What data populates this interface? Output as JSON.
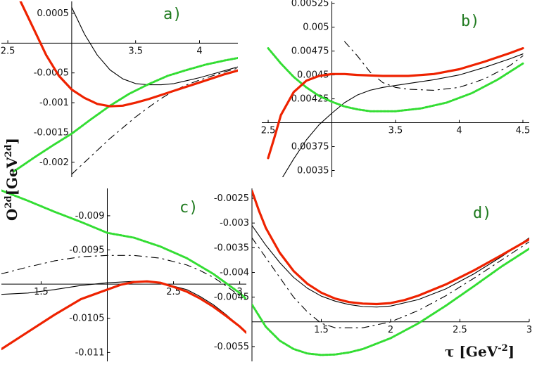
{
  "figure": {
    "ylabel": {
      "base": "O",
      "sup1": "2d",
      "mid": "[GeV",
      "sup2": "2d",
      "end": "]"
    },
    "xlabel": {
      "base": "τ [GeV",
      "sup": "-2",
      "end": "]"
    }
  },
  "chart_data": [
    {
      "panel": "a)",
      "type": "line",
      "xlim": [
        2.45,
        4.3
      ],
      "ylim": [
        -0.00225,
        0.0007
      ],
      "xticks": [
        "2.5",
        "3.5",
        "4"
      ],
      "xtick_values": [
        2.5,
        3.5,
        4
      ],
      "yticks": [
        "0.0005",
        "-0.0005",
        "-0.001",
        "-0.0015",
        "-0.002"
      ],
      "ytick_values": [
        0.0005,
        -0.0005,
        -0.001,
        -0.0015,
        -0.002
      ],
      "axis_cross": [
        3.0,
        0.0
      ],
      "series": [
        {
          "style": "black-solid",
          "color": "#000000",
          "x": [
            3.0,
            3.1,
            3.2,
            3.3,
            3.4,
            3.5,
            3.6,
            3.7,
            3.8,
            3.9,
            4.0,
            4.1,
            4.2,
            4.3
          ],
          "y": [
            0.0006,
            0.00015,
            -0.0002,
            -0.00045,
            -0.0006,
            -0.00068,
            -0.0007,
            -0.0007,
            -0.00068,
            -0.00063,
            -0.00058,
            -0.00052,
            -0.00046,
            -0.0004
          ]
        },
        {
          "style": "black-dashed",
          "color": "#000000",
          "x": [
            3.0,
            3.1,
            3.2,
            3.3,
            3.4,
            3.5,
            3.6,
            3.7,
            3.8,
            3.9,
            4.0,
            4.1,
            4.2,
            4.3
          ],
          "y": [
            -0.0022,
            -0.002,
            -0.0018,
            -0.0016,
            -0.00142,
            -0.00124,
            -0.00108,
            -0.00093,
            -0.0008,
            -0.0007,
            -0.00062,
            -0.00055,
            -0.00048,
            -0.00042
          ]
        },
        {
          "style": "green-dotted",
          "color": "#33dd33",
          "x": [
            2.55,
            2.7,
            2.85,
            3.0,
            3.15,
            3.3,
            3.45,
            3.6,
            3.75,
            3.9,
            4.05,
            4.2,
            4.3
          ],
          "y": [
            -0.00215,
            -0.00193,
            -0.00172,
            -0.00152,
            -0.00128,
            -0.00105,
            -0.00085,
            -0.00069,
            -0.00055,
            -0.00045,
            -0.00036,
            -0.00029,
            -0.00025
          ]
        },
        {
          "style": "red-thick",
          "color": "#ee2200",
          "x": [
            2.6,
            2.7,
            2.8,
            2.9,
            3.0,
            3.1,
            3.2,
            3.3,
            3.4,
            3.5,
            3.6,
            3.7,
            3.8,
            3.9,
            4.0,
            4.1,
            4.2,
            4.3
          ],
          "y": [
            0.0007,
            0.00025,
            -0.0002,
            -0.00055,
            -0.00078,
            -0.00092,
            -0.00102,
            -0.00106,
            -0.00105,
            -0.001,
            -0.00094,
            -0.00087,
            -0.0008,
            -0.00073,
            -0.00066,
            -0.00059,
            -0.00052,
            -0.00046
          ]
        }
      ]
    },
    {
      "panel": "b)",
      "type": "line",
      "xlim": [
        2.45,
        4.55
      ],
      "ylim": [
        0.00343,
        0.00527
      ],
      "xticks": [
        "2.5",
        "3.5",
        "4",
        "4.5"
      ],
      "xtick_values": [
        2.5,
        3.5,
        4,
        4.5
      ],
      "yticks": [
        "0.00525",
        "0.005",
        "0.00475",
        "0.0045",
        "0.00425",
        "0.00375",
        "0.0035"
      ],
      "ytick_values": [
        0.00525,
        0.005,
        0.00475,
        0.0045,
        0.00425,
        0.00375,
        0.0035
      ],
      "axis_cross": [
        3.0,
        0.004
      ],
      "series": [
        {
          "style": "black-solid",
          "color": "#000000",
          "x": [
            2.6,
            2.7,
            2.8,
            2.9,
            3.0,
            3.1,
            3.2,
            3.3,
            3.4,
            3.6,
            3.8,
            4.0,
            4.2,
            4.4,
            4.5
          ],
          "y": [
            0.0034,
            0.00362,
            0.00382,
            0.00398,
            0.0041,
            0.00421,
            0.00429,
            0.00434,
            0.00437,
            0.00441,
            0.00445,
            0.0045,
            0.00458,
            0.00467,
            0.00472
          ]
        },
        {
          "style": "black-dashed",
          "color": "#000000",
          "x": [
            3.1,
            3.2,
            3.3,
            3.4,
            3.5,
            3.6,
            3.8,
            4.0,
            4.2,
            4.4,
            4.5
          ],
          "y": [
            0.00485,
            0.0047,
            0.00453,
            0.00442,
            0.00437,
            0.00435,
            0.00434,
            0.00437,
            0.00446,
            0.0046,
            0.0047
          ]
        },
        {
          "style": "green-dotted",
          "color": "#33dd33",
          "x": [
            2.5,
            2.6,
            2.7,
            2.8,
            2.9,
            3.0,
            3.1,
            3.2,
            3.3,
            3.5,
            3.7,
            3.9,
            4.1,
            4.3,
            4.5
          ],
          "y": [
            0.00478,
            0.00462,
            0.00448,
            0.00437,
            0.00428,
            0.00422,
            0.00417,
            0.00414,
            0.00412,
            0.00412,
            0.00415,
            0.00421,
            0.00431,
            0.00445,
            0.00462
          ]
        },
        {
          "style": "red-thick",
          "color": "#ee2200",
          "x": [
            2.5,
            2.55,
            2.6,
            2.7,
            2.8,
            2.9,
            3.0,
            3.1,
            3.2,
            3.4,
            3.6,
            3.8,
            4.0,
            4.2,
            4.4,
            4.5
          ],
          "y": [
            0.00363,
            0.00385,
            0.00408,
            0.00432,
            0.00444,
            0.00449,
            0.00451,
            0.00451,
            0.0045,
            0.00449,
            0.00449,
            0.00451,
            0.00456,
            0.00464,
            0.00473,
            0.00478
          ]
        }
      ]
    },
    {
      "panel": "c)",
      "type": "line",
      "xlim": [
        1.2,
        3.05
      ],
      "ylim": [
        -0.01113,
        -0.0086
      ],
      "xticks": [
        "1.5",
        "2.5",
        "3"
      ],
      "xtick_values": [
        1.5,
        2.5,
        3
      ],
      "yticks": [
        "-0.009",
        "-0.0095",
        "-0.0105",
        "-0.011"
      ],
      "ytick_values": [
        -0.009,
        -0.0095,
        -0.0105,
        -0.011
      ],
      "axis_cross": [
        2.0,
        -0.01
      ],
      "series": [
        {
          "style": "black-solid",
          "color": "#000000",
          "x": [
            1.2,
            1.4,
            1.6,
            1.8,
            2.0,
            2.2,
            2.4,
            2.6,
            2.7,
            2.8,
            2.9,
            3.05
          ],
          "y": [
            -0.01015,
            -0.01013,
            -0.01008,
            -0.01002,
            -0.00998,
            -0.00996,
            -0.00998,
            -0.01008,
            -0.01018,
            -0.0103,
            -0.01045,
            -0.0107
          ]
        },
        {
          "style": "black-dashed",
          "color": "#000000",
          "x": [
            1.2,
            1.4,
            1.6,
            1.8,
            2.0,
            2.2,
            2.4,
            2.6,
            2.7,
            2.8,
            2.9,
            3.0
          ],
          "y": [
            -0.00985,
            -0.00975,
            -0.00966,
            -0.0096,
            -0.00958,
            -0.00958,
            -0.00962,
            -0.00972,
            -0.0098,
            -0.0099,
            -0.01003,
            -0.01017
          ]
        },
        {
          "style": "green-dotted",
          "color": "#33dd33",
          "x": [
            1.2,
            1.4,
            1.6,
            1.8,
            2.0,
            2.2,
            2.4,
            2.6,
            2.8,
            3.0,
            3.05
          ],
          "y": [
            -0.00863,
            -0.00878,
            -0.00894,
            -0.00909,
            -0.00925,
            -0.00932,
            -0.00945,
            -0.00962,
            -0.00985,
            -0.01013,
            -0.01022
          ]
        },
        {
          "style": "red-thick",
          "color": "#ee2200",
          "x": [
            1.2,
            1.4,
            1.6,
            1.8,
            2.0,
            2.1,
            2.2,
            2.3,
            2.4,
            2.5,
            2.6,
            2.7,
            2.8,
            2.9,
            3.0,
            3.05
          ],
          "y": [
            -0.01095,
            -0.0107,
            -0.01045,
            -0.01022,
            -0.01008,
            -0.01001,
            -0.00997,
            -0.00996,
            -0.00998,
            -0.01004,
            -0.01011,
            -0.01021,
            -0.01033,
            -0.01047,
            -0.01062,
            -0.01071
          ]
        }
      ]
    },
    {
      "panel": "d)",
      "type": "line",
      "xlim": [
        1.0,
        3.0
      ],
      "ylim": [
        -0.0058,
        -0.0023
      ],
      "xticks": [
        "1.5",
        "2",
        "2.5",
        "3"
      ],
      "xtick_values": [
        1.5,
        2,
        2.5,
        3
      ],
      "yticks": [
        "-0.0025",
        "-0.003",
        "-0.0035",
        "-0.004",
        "-0.0045",
        "-0.0055"
      ],
      "ytick_values": [
        -0.0025,
        -0.003,
        -0.0035,
        -0.004,
        -0.0045,
        -0.0055
      ],
      "axis_cross": [
        1.0,
        -0.005
      ],
      "series": [
        {
          "style": "black-solid",
          "color": "#000000",
          "x": [
            1.0,
            1.1,
            1.2,
            1.3,
            1.4,
            1.5,
            1.6,
            1.7,
            1.8,
            1.9,
            2.0,
            2.2,
            2.4,
            2.6,
            2.8,
            3.0
          ],
          "y": [
            -0.00305,
            -0.00345,
            -0.0038,
            -0.0041,
            -0.00432,
            -0.00448,
            -0.00458,
            -0.00465,
            -0.00469,
            -0.0047,
            -0.00468,
            -0.00455,
            -0.00433,
            -0.00403,
            -0.00368,
            -0.0033
          ]
        },
        {
          "style": "black-dashed",
          "color": "#000000",
          "x": [
            1.0,
            1.1,
            1.2,
            1.3,
            1.4,
            1.5,
            1.6,
            1.8,
            2.0,
            2.2,
            2.4,
            2.6,
            2.8,
            3.0
          ],
          "y": [
            -0.0033,
            -0.0037,
            -0.0041,
            -0.0045,
            -0.0048,
            -0.00503,
            -0.00512,
            -0.00512,
            -0.005,
            -0.00477,
            -0.00447,
            -0.00412,
            -0.00375,
            -0.00338
          ]
        },
        {
          "style": "green-dotted",
          "color": "#33dd33",
          "x": [
            1.0,
            1.1,
            1.2,
            1.3,
            1.4,
            1.5,
            1.6,
            1.7,
            1.8,
            2.0,
            2.2,
            2.4,
            2.6,
            2.8,
            3.0
          ],
          "y": [
            -0.00465,
            -0.0051,
            -0.00538,
            -0.00555,
            -0.00564,
            -0.00567,
            -0.00566,
            -0.00562,
            -0.00555,
            -0.00533,
            -0.00503,
            -0.00467,
            -0.00428,
            -0.00388,
            -0.00352
          ]
        },
        {
          "style": "red-thick",
          "color": "#ee2200",
          "x": [
            1.0,
            1.05,
            1.1,
            1.2,
            1.3,
            1.4,
            1.5,
            1.6,
            1.7,
            1.8,
            1.9,
            2.0,
            2.1,
            2.2,
            2.4,
            2.6,
            2.8,
            3.0
          ],
          "y": [
            -0.00235,
            -0.00275,
            -0.0031,
            -0.0036,
            -0.00397,
            -0.00423,
            -0.00441,
            -0.00453,
            -0.0046,
            -0.00463,
            -0.00464,
            -0.00462,
            -0.00456,
            -0.00447,
            -0.00424,
            -0.00396,
            -0.00365,
            -0.00333
          ]
        }
      ]
    }
  ]
}
